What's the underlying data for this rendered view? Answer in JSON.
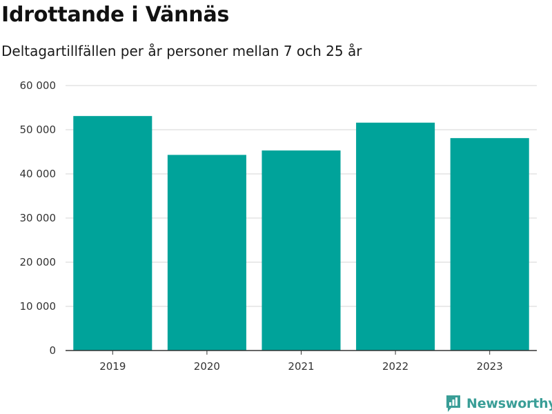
{
  "chart_data": {
    "type": "bar",
    "title": "Idrottande i Vännäs",
    "subtitle": "Deltagartillfällen per år personer mellan 7 och 25 år",
    "categories": [
      "2019",
      "2020",
      "2021",
      "2022",
      "2023"
    ],
    "values": [
      53100,
      44300,
      45300,
      51600,
      48100
    ],
    "ylim": [
      0,
      60000
    ],
    "yticks": [
      0,
      10000,
      20000,
      30000,
      40000,
      50000,
      60000
    ],
    "ytick_labels": [
      "0",
      "10 000",
      "20 000",
      "30 000",
      "40 000",
      "50 000",
      "60 000"
    ],
    "grid": true,
    "legend": "none",
    "bar_color": "#00a39a"
  },
  "brand": {
    "name": "Newsworthy",
    "color": "#3a9e97",
    "icon": "newsworthy-logo-icon"
  }
}
